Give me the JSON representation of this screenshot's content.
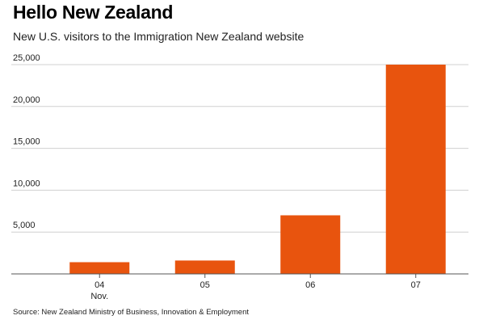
{
  "header": {
    "title": "Hello New Zealand",
    "subtitle": "New U.S. visitors to the Immigration New Zealand website"
  },
  "footer": {
    "source": "Source: New Zealand Ministry of Business, Innovation & Employment"
  },
  "colors": {
    "bar": "#e8540e",
    "grid": "#d0d0d0",
    "axis": "#555555"
  },
  "chart_data": {
    "type": "bar",
    "title": "Hello New Zealand",
    "subtitle": "New U.S. visitors to the Immigration New Zealand website",
    "categories": [
      "04",
      "05",
      "06",
      "07"
    ],
    "category_sublabels": [
      "Nov.",
      "",
      "",
      ""
    ],
    "values": [
      1400,
      1600,
      7000,
      25000
    ],
    "ylim": [
      0,
      25000
    ],
    "yticks": [
      5000,
      10000,
      15000,
      20000,
      25000
    ],
    "ytick_labels": [
      "5,000",
      "10,000",
      "15,000",
      "20,000",
      "25,000"
    ],
    "xlabel": "",
    "ylabel": "",
    "grid": true,
    "legend": "none"
  }
}
